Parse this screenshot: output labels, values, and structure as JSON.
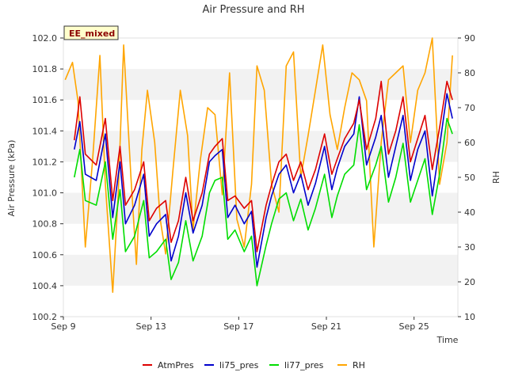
{
  "chart_data": {
    "type": "line",
    "title": "Air Pressure and RH",
    "tag": "EE_mixed",
    "xlabel": "Time",
    "ylabel_left": "Air Pressure (kPa)",
    "ylabel_right": "RH",
    "x_range": [
      "2023-09-09",
      "2023-09-27"
    ],
    "x_ticks": [
      {
        "date": "2023-09-09",
        "label": "Sep 9"
      },
      {
        "date": "2023-09-13",
        "label": "Sep 13"
      },
      {
        "date": "2023-09-17",
        "label": "Sep 17"
      },
      {
        "date": "2023-09-21",
        "label": "Sep 21"
      },
      {
        "date": "2023-09-25",
        "label": "Sep 25"
      }
    ],
    "ylim_left": [
      100.2,
      102.0
    ],
    "y_ticks_left": [
      "100.2",
      "100.4",
      "100.6",
      "100.8",
      "101.0",
      "101.2",
      "101.4",
      "101.6",
      "101.8",
      "102.0"
    ],
    "ylim_right": [
      10,
      90
    ],
    "y_ticks_right": [
      "10",
      "20",
      "30",
      "40",
      "50",
      "60",
      "70",
      "80",
      "90"
    ],
    "grid": "horizontal bands",
    "legend_position": "bottom",
    "series": [
      {
        "name": "AtmPres",
        "axis": "left",
        "color": "#dd0000",
        "x": [
          "2023-09-09 12:00",
          "2023-09-09 18:00",
          "2023-09-10 00:00",
          "2023-09-10 12:00",
          "2023-09-10 22:00",
          "2023-09-11 06:00",
          "2023-09-11 14:00",
          "2023-09-11 20:00",
          "2023-09-12 06:00",
          "2023-09-12 16:00",
          "2023-09-12 22:00",
          "2023-09-13 06:00",
          "2023-09-13 16:00",
          "2023-09-13 22:00",
          "2023-09-14 06:00",
          "2023-09-14 14:00",
          "2023-09-14 22:00",
          "2023-09-15 08:00",
          "2023-09-15 16:00",
          "2023-09-15 22:00",
          "2023-09-16 06:00",
          "2023-09-16 12:00",
          "2023-09-16 20:00",
          "2023-09-17 06:00",
          "2023-09-17 14:00",
          "2023-09-17 20:00",
          "2023-09-18 06:00",
          "2023-09-18 12:00",
          "2023-09-18 20:00",
          "2023-09-19 04:00",
          "2023-09-19 12:00",
          "2023-09-19 20:00",
          "2023-09-20 04:00",
          "2023-09-20 12:00",
          "2023-09-20 22:00",
          "2023-09-21 06:00",
          "2023-09-21 12:00",
          "2023-09-21 20:00",
          "2023-09-22 06:00",
          "2023-09-22 12:00",
          "2023-09-22 20:00",
          "2023-09-23 06:00",
          "2023-09-23 12:00",
          "2023-09-23 20:00",
          "2023-09-24 04:00",
          "2023-09-24 12:00",
          "2023-09-24 20:00",
          "2023-09-25 04:00",
          "2023-09-25 12:00",
          "2023-09-25 20:00",
          "2023-09-26 04:00",
          "2023-09-26 12:00",
          "2023-09-26 18:00"
        ],
        "values": [
          101.34,
          101.62,
          101.25,
          101.18,
          101.48,
          100.95,
          101.3,
          100.92,
          101.02,
          101.2,
          100.82,
          100.9,
          100.95,
          100.68,
          100.82,
          101.1,
          100.82,
          101.0,
          101.25,
          101.3,
          101.35,
          100.95,
          100.98,
          100.9,
          100.95,
          100.62,
          100.92,
          101.05,
          101.2,
          101.25,
          101.08,
          101.2,
          101.02,
          101.15,
          101.38,
          101.12,
          101.22,
          101.35,
          101.45,
          101.6,
          101.28,
          101.48,
          101.72,
          101.25,
          101.4,
          101.62,
          101.2,
          101.35,
          101.5,
          101.15,
          101.42,
          101.72,
          101.6
        ]
      },
      {
        "name": "li75_pres",
        "axis": "left",
        "color": "#0000cc",
        "x": [
          "2023-09-09 12:00",
          "2023-09-09 18:00",
          "2023-09-10 00:00",
          "2023-09-10 12:00",
          "2023-09-10 22:00",
          "2023-09-11 06:00",
          "2023-09-11 14:00",
          "2023-09-11 20:00",
          "2023-09-12 06:00",
          "2023-09-12 16:00",
          "2023-09-12 22:00",
          "2023-09-13 06:00",
          "2023-09-13 16:00",
          "2023-09-13 22:00",
          "2023-09-14 06:00",
          "2023-09-14 14:00",
          "2023-09-14 22:00",
          "2023-09-15 08:00",
          "2023-09-15 16:00",
          "2023-09-15 22:00",
          "2023-09-16 06:00",
          "2023-09-16 12:00",
          "2023-09-16 20:00",
          "2023-09-17 06:00",
          "2023-09-17 14:00",
          "2023-09-17 20:00",
          "2023-09-18 06:00",
          "2023-09-18 12:00",
          "2023-09-18 20:00",
          "2023-09-19 04:00",
          "2023-09-19 12:00",
          "2023-09-19 20:00",
          "2023-09-20 04:00",
          "2023-09-20 12:00",
          "2023-09-20 22:00",
          "2023-09-21 06:00",
          "2023-09-21 12:00",
          "2023-09-21 20:00",
          "2023-09-22 06:00",
          "2023-09-22 12:00",
          "2023-09-22 20:00",
          "2023-09-23 06:00",
          "2023-09-23 12:00",
          "2023-09-23 20:00",
          "2023-09-24 04:00",
          "2023-09-24 12:00",
          "2023-09-24 20:00",
          "2023-09-25 04:00",
          "2023-09-25 12:00",
          "2023-09-25 20:00",
          "2023-09-26 04:00",
          "2023-09-26 12:00",
          "2023-09-26 18:00"
        ],
        "values": [
          101.28,
          101.46,
          101.12,
          101.08,
          101.38,
          100.84,
          101.2,
          100.8,
          100.92,
          101.12,
          100.72,
          100.8,
          100.86,
          100.56,
          100.72,
          101.0,
          100.74,
          100.92,
          101.2,
          101.24,
          101.28,
          100.84,
          100.92,
          100.8,
          100.88,
          100.52,
          100.84,
          100.98,
          101.12,
          101.18,
          101.0,
          101.12,
          100.92,
          101.06,
          101.3,
          101.02,
          101.16,
          101.3,
          101.38,
          101.62,
          101.18,
          101.36,
          101.5,
          101.1,
          101.3,
          101.5,
          101.08,
          101.28,
          101.4,
          100.98,
          101.3,
          101.64,
          101.48
        ]
      },
      {
        "name": "li77_pres",
        "axis": "left",
        "color": "#00dd00",
        "x": [
          "2023-09-09 12:00",
          "2023-09-09 18:00",
          "2023-09-10 00:00",
          "2023-09-10 12:00",
          "2023-09-10 22:00",
          "2023-09-11 06:00",
          "2023-09-11 14:00",
          "2023-09-11 20:00",
          "2023-09-12 06:00",
          "2023-09-12 16:00",
          "2023-09-12 22:00",
          "2023-09-13 06:00",
          "2023-09-13 16:00",
          "2023-09-13 22:00",
          "2023-09-14 06:00",
          "2023-09-14 14:00",
          "2023-09-14 22:00",
          "2023-09-15 08:00",
          "2023-09-15 16:00",
          "2023-09-15 22:00",
          "2023-09-16 06:00",
          "2023-09-16 12:00",
          "2023-09-16 20:00",
          "2023-09-17 06:00",
          "2023-09-17 14:00",
          "2023-09-17 20:00",
          "2023-09-18 06:00",
          "2023-09-18 12:00",
          "2023-09-18 20:00",
          "2023-09-19 04:00",
          "2023-09-19 12:00",
          "2023-09-19 20:00",
          "2023-09-20 04:00",
          "2023-09-20 12:00",
          "2023-09-20 22:00",
          "2023-09-21 06:00",
          "2023-09-21 12:00",
          "2023-09-21 20:00",
          "2023-09-22 06:00",
          "2023-09-22 12:00",
          "2023-09-22 20:00",
          "2023-09-23 06:00",
          "2023-09-23 12:00",
          "2023-09-23 20:00",
          "2023-09-24 04:00",
          "2023-09-24 12:00",
          "2023-09-24 20:00",
          "2023-09-25 04:00",
          "2023-09-25 12:00",
          "2023-09-25 20:00",
          "2023-09-26 04:00",
          "2023-09-26 12:00",
          "2023-09-26 18:00"
        ],
        "values": [
          101.1,
          101.28,
          100.95,
          100.92,
          101.2,
          100.7,
          101.02,
          100.62,
          100.72,
          100.95,
          100.58,
          100.62,
          100.7,
          100.44,
          100.55,
          100.82,
          100.56,
          100.72,
          101.0,
          101.08,
          101.1,
          100.7,
          100.76,
          100.62,
          100.72,
          100.4,
          100.66,
          100.8,
          100.96,
          101.0,
          100.82,
          100.96,
          100.76,
          100.9,
          101.12,
          100.84,
          100.98,
          101.12,
          101.18,
          101.44,
          101.02,
          101.18,
          101.3,
          100.94,
          101.1,
          101.32,
          100.94,
          101.08,
          101.22,
          100.86,
          101.12,
          101.48,
          101.38
        ]
      },
      {
        "name": "RH",
        "axis": "right",
        "color": "#ffa500",
        "x": [
          "2023-09-09 02:00",
          "2023-09-09 10:00",
          "2023-09-09 16:00",
          "2023-09-10 00:00",
          "2023-09-10 08:00",
          "2023-09-10 16:00",
          "2023-09-10 22:00",
          "2023-09-11 06:00",
          "2023-09-11 12:00",
          "2023-09-11 18:00",
          "2023-09-12 02:00",
          "2023-09-12 08:00",
          "2023-09-12 14:00",
          "2023-09-12 20:00",
          "2023-09-13 04:00",
          "2023-09-13 10:00",
          "2023-09-13 16:00",
          "2023-09-14 00:00",
          "2023-09-14 08:00",
          "2023-09-14 16:00",
          "2023-09-14 22:00",
          "2023-09-15 06:00",
          "2023-09-15 14:00",
          "2023-09-15 22:00",
          "2023-09-16 06:00",
          "2023-09-16 14:00",
          "2023-09-16 22:00",
          "2023-09-17 06:00",
          "2023-09-17 14:00",
          "2023-09-17 20:00",
          "2023-09-18 04:00",
          "2023-09-18 12:00",
          "2023-09-18 20:00",
          "2023-09-19 04:00",
          "2023-09-19 12:00",
          "2023-09-19 20:00",
          "2023-09-20 04:00",
          "2023-09-20 12:00",
          "2023-09-20 20:00",
          "2023-09-21 04:00",
          "2023-09-21 12:00",
          "2023-09-21 20:00",
          "2023-09-22 04:00",
          "2023-09-22 12:00",
          "2023-09-22 20:00",
          "2023-09-23 04:00",
          "2023-09-23 12:00",
          "2023-09-23 20:00",
          "2023-09-24 04:00",
          "2023-09-24 12:00",
          "2023-09-24 20:00",
          "2023-09-25 04:00",
          "2023-09-25 12:00",
          "2023-09-25 20:00",
          "2023-09-26 04:00",
          "2023-09-26 12:00",
          "2023-09-26 18:00"
        ],
        "values": [
          78,
          83,
          72,
          30,
          55,
          85,
          48,
          17,
          45,
          88,
          50,
          25,
          58,
          75,
          60,
          38,
          28,
          52,
          75,
          62,
          35,
          55,
          70,
          68,
          45,
          80,
          38,
          30,
          48,
          82,
          75,
          48,
          40,
          82,
          86,
          50,
          62,
          75,
          88,
          68,
          58,
          70,
          80,
          78,
          72,
          30,
          60,
          78,
          80,
          82,
          60,
          75,
          80,
          90,
          48,
          60,
          85
        ]
      }
    ],
    "legend": [
      "AtmPres",
      "li75_pres",
      "li77_pres",
      "RH"
    ]
  }
}
